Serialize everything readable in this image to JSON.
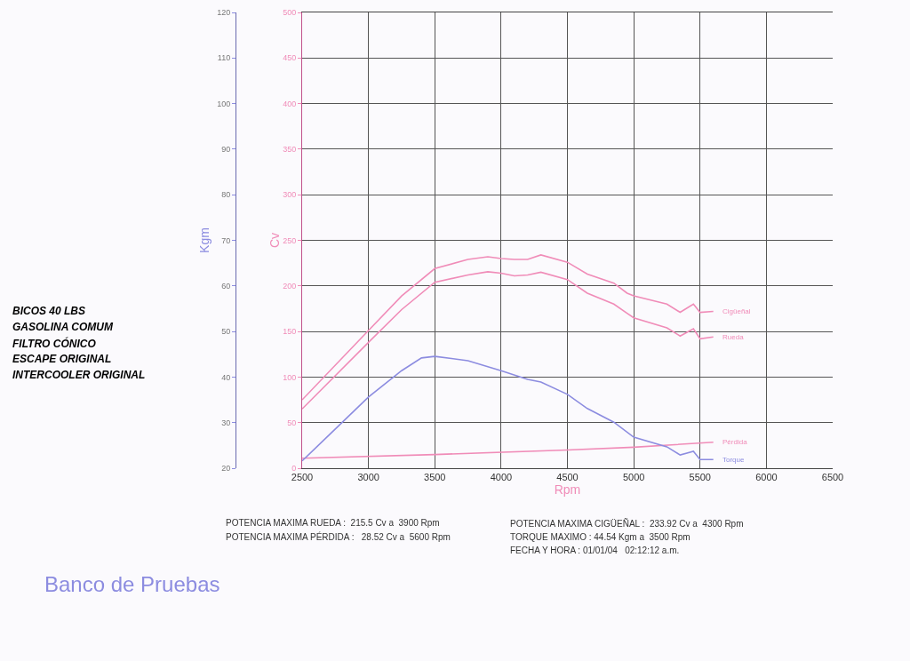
{
  "chart_data": {
    "type": "line",
    "xlabel": "Rpm",
    "ylabel": "Cv",
    "y2label": "Kgm",
    "xlim": [
      2500,
      6500
    ],
    "xticks": [
      2500,
      3000,
      3500,
      4000,
      4500,
      5000,
      5500,
      6000,
      6500
    ],
    "ylim": [
      0,
      500
    ],
    "yticks": [
      0,
      50,
      100,
      150,
      200,
      250,
      300,
      350,
      400,
      450,
      500
    ],
    "y2lim": [
      20,
      120
    ],
    "y2ticks": [
      20,
      30,
      40,
      50,
      60,
      70,
      80,
      90,
      100,
      110,
      120
    ],
    "grid": true,
    "legend": false,
    "marker": "none",
    "line_style": "solid",
    "series": [
      {
        "name": "Cigüeñal",
        "color": "#f08cb8",
        "x": [
          2500,
          3000,
          3250,
          3500,
          3750,
          3900,
          4000,
          4100,
          4200,
          4300,
          4500,
          4650,
          4850,
          4950,
          5000,
          5250,
          5350,
          5450,
          5500,
          5600
        ],
        "values": [
          75,
          151,
          189,
          219,
          229,
          232,
          230,
          229,
          229,
          234,
          226,
          213,
          203,
          192,
          189,
          180,
          171,
          180,
          171,
          172
        ]
      },
      {
        "name": "Rueda",
        "color": "#f08cb8",
        "x": [
          2500,
          3000,
          3250,
          3500,
          3750,
          3900,
          4000,
          4100,
          4200,
          4300,
          4500,
          4650,
          4850,
          4950,
          5000,
          5250,
          5350,
          5450,
          5500,
          5600
        ],
        "values": [
          65,
          138,
          174,
          204,
          212,
          215.5,
          214,
          211,
          212,
          215,
          207,
          192,
          180,
          170,
          165,
          154,
          145,
          153,
          142,
          144
        ]
      },
      {
        "name": "Pérdida",
        "color": "#f08cb8",
        "x": [
          2500,
          3500,
          4500,
          5000,
          5600
        ],
        "values": [
          11,
          15,
          20,
          23,
          28.5
        ]
      },
      {
        "name": "Torque",
        "color": "#8c8ce0",
        "axis": "y2",
        "x": [
          2500,
          2750,
          3000,
          3250,
          3400,
          3500,
          3750,
          4000,
          4200,
          4300,
          4500,
          4650,
          4850,
          5000,
          5250,
          5350,
          5450,
          5500,
          5600
        ],
        "values": [
          21.6,
          28.6,
          35.6,
          41.4,
          44.2,
          44.54,
          43.6,
          41.4,
          39.5,
          38.9,
          36.2,
          33.1,
          30.1,
          26.8,
          24.7,
          22.9,
          23.7,
          21.9,
          21.9
        ]
      }
    ],
    "annotations": [
      "BICOS 40 LBS",
      "GASOLINA COMUM",
      "FILTRO CÓNICO",
      "ESCAPE ORIGINAL",
      "INTERCOOLER ORIGINAL",
      "POTENCIA MAXIMA RUEDA :  215.5 Cv a  3900 Rpm",
      "POTENCIA MAXIMA PÉRDIDA :   28.52 Cv a  5600 Rpm",
      "POTENCIA MAXIMA CIGÜEÑAL :  233.92 Cv a  4300 Rpm",
      "TORQUE MAXIMO : 44.54 Kgm a  3500 Rpm",
      "FECHA Y HORA : 01/01/04   02:12:12 a.m.",
      "Banco de Pruebas"
    ]
  }
}
